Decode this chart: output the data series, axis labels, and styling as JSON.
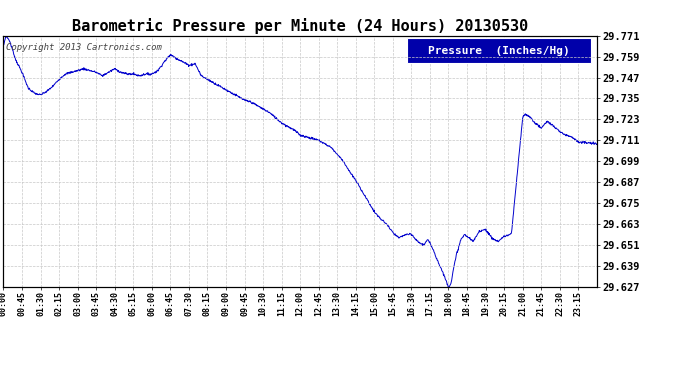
{
  "title": "Barometric Pressure per Minute (24 Hours) 20130530",
  "copyright": "Copyright 2013 Cartronics.com",
  "legend_label": "Pressure  (Inches/Hg)",
  "background_color": "#ffffff",
  "plot_bg_color": "#ffffff",
  "line_color": "#0000cc",
  "grid_color": "#c8c8c8",
  "ylim_min": 29.627,
  "ylim_max": 29.771,
  "yticks": [
    29.627,
    29.639,
    29.651,
    29.663,
    29.675,
    29.687,
    29.699,
    29.711,
    29.723,
    29.735,
    29.747,
    29.759,
    29.771
  ],
  "xtick_labels": [
    "00:00",
    "00:45",
    "01:30",
    "02:15",
    "03:00",
    "03:45",
    "04:30",
    "05:15",
    "06:00",
    "06:45",
    "07:30",
    "08:15",
    "09:00",
    "09:45",
    "10:30",
    "11:15",
    "12:00",
    "12:45",
    "13:30",
    "14:15",
    "15:00",
    "15:45",
    "16:30",
    "17:15",
    "18:00",
    "18:45",
    "19:30",
    "20:15",
    "21:00",
    "21:45",
    "22:30",
    "23:15"
  ],
  "title_fontsize": 11,
  "copyright_fontsize": 6.5,
  "legend_fontsize": 8,
  "ytick_fontsize": 7.5,
  "xtick_fontsize": 6,
  "keypoints_h": [
    0.0,
    0.1,
    0.25,
    0.5,
    0.75,
    1.0,
    1.25,
    1.5,
    1.75,
    2.0,
    2.25,
    2.5,
    2.75,
    3.0,
    3.25,
    3.5,
    3.75,
    4.0,
    4.25,
    4.5,
    4.75,
    5.0,
    5.25,
    5.5,
    5.75,
    6.0,
    6.25,
    6.5,
    6.75,
    7.0,
    7.25,
    7.5,
    7.75,
    8.0,
    8.25,
    8.5,
    8.75,
    9.0,
    9.25,
    9.5,
    9.75,
    10.0,
    10.25,
    10.5,
    10.75,
    11.0,
    11.25,
    11.5,
    11.75,
    12.0,
    12.25,
    12.5,
    12.75,
    13.0,
    13.25,
    13.5,
    13.75,
    14.0,
    14.25,
    14.5,
    14.75,
    15.0,
    15.25,
    15.5,
    15.75,
    16.0,
    16.25,
    16.5,
    16.75,
    17.0,
    17.15,
    17.25,
    17.4,
    17.5,
    17.65,
    17.75,
    18.0,
    18.1,
    18.2,
    18.33,
    18.5,
    18.65,
    18.75,
    19.0,
    19.25,
    19.5,
    19.75,
    20.0,
    20.25,
    20.5,
    20.55,
    21.0,
    21.1,
    21.25,
    21.5,
    21.75,
    22.0,
    22.25,
    22.5,
    22.75,
    23.0,
    23.25,
    23.99
  ],
  "keypoints_p": [
    29.765,
    29.771,
    29.768,
    29.757,
    29.75,
    29.741,
    29.738,
    29.737,
    29.739,
    29.742,
    29.746,
    29.749,
    29.75,
    29.751,
    29.752,
    29.751,
    29.75,
    29.748,
    29.75,
    29.752,
    29.75,
    29.749,
    29.749,
    29.748,
    29.749,
    29.749,
    29.751,
    29.756,
    29.76,
    29.758,
    29.756,
    29.754,
    29.755,
    29.748,
    29.746,
    29.744,
    29.742,
    29.74,
    29.738,
    29.736,
    29.734,
    29.733,
    29.731,
    29.729,
    29.727,
    29.724,
    29.721,
    29.719,
    29.717,
    29.714,
    29.713,
    29.712,
    29.711,
    29.709,
    29.707,
    29.703,
    29.699,
    29.693,
    29.688,
    29.682,
    29.676,
    29.67,
    29.666,
    29.663,
    29.658,
    29.655,
    29.657,
    29.657,
    29.653,
    29.651,
    29.654,
    29.652,
    29.648,
    29.644,
    29.639,
    29.636,
    29.627,
    29.629,
    29.637,
    29.646,
    29.654,
    29.657,
    29.656,
    29.653,
    29.659,
    29.66,
    29.655,
    29.653,
    29.656,
    29.657,
    29.658,
    29.724,
    29.726,
    29.725,
    29.721,
    29.718,
    29.722,
    29.719,
    29.716,
    29.714,
    29.713,
    29.71,
    29.709
  ]
}
